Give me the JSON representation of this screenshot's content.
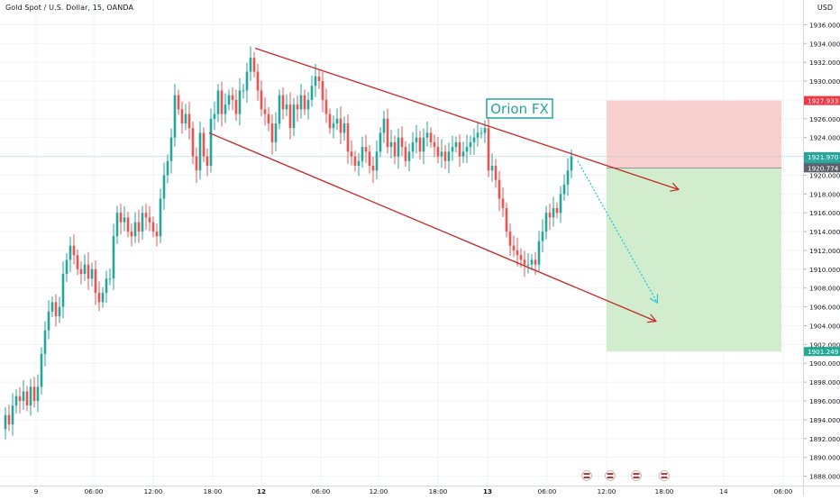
{
  "header": {
    "symbol": "Gold Spot / U.S. Dollar, 15, OANDA",
    "currency": "USD"
  },
  "annotation": {
    "text": "Orion FX"
  },
  "price_axis": {
    "ticks": [
      "1936.000",
      "1934.000",
      "1932.000",
      "1930.000",
      "1928.000",
      "1926.000",
      "1924.000",
      "1922.000",
      "1920.000",
      "1918.000",
      "1916.000",
      "1914.000",
      "1912.000",
      "1910.000",
      "1908.000",
      "1906.000",
      "1904.000",
      "1902.000",
      "1900.000",
      "1898.000",
      "1896.000",
      "1894.000",
      "1892.000",
      "1890.000",
      "1888.000"
    ],
    "price_min": 1888,
    "price_max": 1938
  },
  "time_axis": {
    "labels": [
      "9",
      "06:00",
      "12:00",
      "18:00",
      "12",
      "06:00",
      "12:00",
      "18:00",
      "13",
      "06:00",
      "12:00",
      "18:00",
      "14",
      "06:00"
    ],
    "bold_labels": [
      "12",
      "13"
    ]
  },
  "badges": {
    "stop_loss": {
      "value": "1927.933",
      "color": "#f23645"
    },
    "current_price": {
      "value": "1921.970",
      "color": "#26a69a"
    },
    "countdown": {
      "value": "13:51",
      "color": "#26a69a"
    },
    "entry": {
      "value": "1920.774",
      "color": "#5d606b"
    },
    "take_profit": {
      "value": "1901.249",
      "color": "#22ab94"
    }
  },
  "colors": {
    "up": "#26a69a",
    "down": "#ef5350",
    "channel": "#c62828",
    "projection": "#26c6da",
    "risk_zone": "#f8c8c8",
    "reward_zone": "#cdebc8"
  },
  "chart_data": {
    "type": "candlestick",
    "symbol": "Gold Spot / U.S. Dollar",
    "interval": "15",
    "source": "OANDA",
    "currency": "USD",
    "ylim": [
      1888,
      1938
    ],
    "x_time_labels": [
      "9",
      "06:00",
      "12:00",
      "18:00",
      "12",
      "06:00",
      "12:00",
      "18:00",
      "13",
      "06:00",
      "12:00",
      "18:00",
      "14",
      "06:00"
    ],
    "close_path": [
      [
        0,
        1893.0
      ],
      [
        6,
        1894.5
      ],
      [
        10,
        1893.5
      ],
      [
        14,
        1895.5
      ],
      [
        18,
        1896.5
      ],
      [
        22,
        1896.0
      ],
      [
        26,
        1897.0
      ],
      [
        30,
        1895.5
      ],
      [
        34,
        1897.5
      ],
      [
        38,
        1896.0
      ],
      [
        42,
        1897.5
      ],
      [
        46,
        1901.0
      ],
      [
        50,
        1903.5
      ],
      [
        54,
        1905.5
      ],
      [
        58,
        1906.5
      ],
      [
        62,
        1905.0
      ],
      [
        66,
        1906.0
      ],
      [
        70,
        1909.5
      ],
      [
        74,
        1911.0
      ],
      [
        78,
        1912.5
      ],
      [
        82,
        1911.5
      ],
      [
        86,
        1910.0
      ],
      [
        90,
        1909.5
      ],
      [
        94,
        1910.5
      ],
      [
        98,
        1909.0
      ],
      [
        102,
        1910.0
      ],
      [
        106,
        1907.5
      ],
      [
        110,
        1906.5
      ],
      [
        114,
        1907.5
      ],
      [
        118,
        1909.0
      ],
      [
        122,
        1909.0
      ],
      [
        126,
        1913.5
      ],
      [
        130,
        1916.0
      ],
      [
        134,
        1915.0
      ],
      [
        138,
        1915.5
      ],
      [
        142,
        1914.0
      ],
      [
        146,
        1913.5
      ],
      [
        150,
        1915.0
      ],
      [
        154,
        1914.0
      ],
      [
        158,
        1916.0
      ],
      [
        162,
        1915.5
      ],
      [
        166,
        1915.0
      ],
      [
        170,
        1914.0
      ],
      [
        174,
        1913.5
      ],
      [
        178,
        1917.5
      ],
      [
        182,
        1920.0
      ],
      [
        186,
        1921.5
      ],
      [
        190,
        1924.0
      ],
      [
        194,
        1928.5
      ],
      [
        198,
        1927.0
      ],
      [
        202,
        1925.5
      ],
      [
        206,
        1926.5
      ],
      [
        210,
        1925.0
      ],
      [
        214,
        1922.0
      ],
      [
        218,
        1920.5
      ],
      [
        222,
        1924.5
      ],
      [
        226,
        1922.0
      ],
      [
        230,
        1921.0
      ],
      [
        234,
        1926.0
      ],
      [
        238,
        1926.5
      ],
      [
        242,
        1929.0
      ],
      [
        246,
        1926.5
      ],
      [
        250,
        1927.5
      ],
      [
        254,
        1928.5
      ],
      [
        258,
        1928.0
      ],
      [
        262,
        1926.5
      ],
      [
        266,
        1929.0
      ],
      [
        270,
        1929.0
      ],
      [
        274,
        1931.0
      ],
      [
        278,
        1932.5
      ],
      [
        282,
        1931.0
      ],
      [
        286,
        1929.0
      ],
      [
        290,
        1927.0
      ],
      [
        294,
        1926.5
      ],
      [
        298,
        1925.5
      ],
      [
        302,
        1923.5
      ],
      [
        306,
        1925.5
      ],
      [
        310,
        1928.5
      ],
      [
        314,
        1927.0
      ],
      [
        318,
        1927.5
      ],
      [
        322,
        1925.0
      ],
      [
        326,
        1927.5
      ],
      [
        330,
        1927.0
      ],
      [
        334,
        1928.5
      ],
      [
        338,
        1927.0
      ],
      [
        342,
        1928.0
      ],
      [
        346,
        1929.5
      ],
      [
        350,
        1930.5
      ],
      [
        354,
        1930.0
      ],
      [
        358,
        1928.0
      ],
      [
        362,
        1926.5
      ],
      [
        366,
        1925.0
      ],
      [
        370,
        1925.5
      ],
      [
        374,
        1926.0
      ],
      [
        378,
        1924.5
      ],
      [
        382,
        1925.5
      ],
      [
        386,
        1922.5
      ],
      [
        390,
        1922.0
      ],
      [
        394,
        1921.0
      ],
      [
        398,
        1921.5
      ],
      [
        402,
        1923.0
      ],
      [
        406,
        1922.5
      ],
      [
        410,
        1921.0
      ],
      [
        414,
        1920.5
      ],
      [
        418,
        1922.5
      ],
      [
        422,
        1924.5
      ],
      [
        426,
        1926.0
      ],
      [
        430,
        1923.0
      ],
      [
        434,
        1923.5
      ],
      [
        438,
        1922.0
      ],
      [
        442,
        1924.0
      ],
      [
        446,
        1923.0
      ],
      [
        450,
        1921.5
      ],
      [
        454,
        1922.5
      ],
      [
        458,
        1923.5
      ],
      [
        462,
        1924.0
      ],
      [
        466,
        1922.5
      ],
      [
        470,
        1924.0
      ],
      [
        474,
        1924.5
      ],
      [
        478,
        1923.5
      ],
      [
        482,
        1923.0
      ],
      [
        486,
        1922.0
      ],
      [
        490,
        1922.5
      ],
      [
        494,
        1921.5
      ],
      [
        498,
        1922.5
      ],
      [
        502,
        1923.0
      ],
      [
        506,
        1923.5
      ],
      [
        510,
        1922.0
      ],
      [
        514,
        1922.5
      ],
      [
        518,
        1923.0
      ],
      [
        522,
        1923.5
      ],
      [
        526,
        1924.0
      ],
      [
        530,
        1924.5
      ],
      [
        534,
        1924.5
      ],
      [
        538,
        1925.0
      ],
      [
        542,
        1920.5
      ],
      [
        546,
        1921.0
      ],
      [
        550,
        1919.5
      ],
      [
        554,
        1917.5
      ],
      [
        558,
        1916.5
      ],
      [
        562,
        1914.0
      ],
      [
        566,
        1912.5
      ],
      [
        570,
        1912.0
      ],
      [
        574,
        1911.5
      ],
      [
        578,
        1911.0
      ],
      [
        582,
        1910.5
      ],
      [
        586,
        1910.5
      ],
      [
        590,
        1911.0
      ],
      [
        594,
        1910.5
      ],
      [
        598,
        1913.0
      ],
      [
        602,
        1914.0
      ],
      [
        606,
        1916.0
      ],
      [
        610,
        1915.5
      ],
      [
        614,
        1916.5
      ],
      [
        618,
        1916.0
      ],
      [
        622,
        1918.0
      ],
      [
        626,
        1919.0
      ],
      [
        630,
        1920.5
      ],
      [
        634,
        1922.0
      ]
    ],
    "current_price": 1921.97,
    "position": {
      "entry": 1920.774,
      "stop_loss": 1927.933,
      "take_profit": 1901.249
    },
    "channel": {
      "upper": [
        [
          283,
          1933.5
        ],
        [
          752,
          1918.5
        ]
      ],
      "lower": [
        [
          232,
          1924.5
        ],
        [
          727,
          1904.5
        ]
      ],
      "markers": [
        "Orion FX"
      ]
    },
    "projection": [
      [
        641,
        1921.5
      ],
      [
        729,
        1906.5
      ]
    ]
  }
}
